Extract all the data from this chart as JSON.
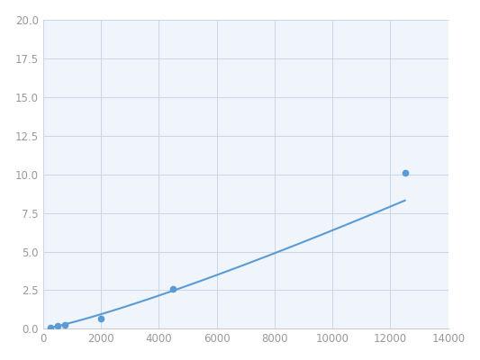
{
  "x": [
    250,
    500,
    750,
    2000,
    4500,
    12500
  ],
  "y": [
    0.1,
    0.2,
    0.25,
    0.65,
    2.6,
    10.1
  ],
  "line_color": "#5b9bd5",
  "marker_color": "#5b9bd5",
  "marker_size": 4.5,
  "line_width": 1.5,
  "xlim": [
    0,
    14000
  ],
  "ylim": [
    0,
    20.0
  ],
  "xticks": [
    0,
    2000,
    4000,
    6000,
    8000,
    10000,
    12000,
    14000
  ],
  "yticks": [
    0.0,
    2.5,
    5.0,
    7.5,
    10.0,
    12.5,
    15.0,
    17.5,
    20.0
  ],
  "grid_color": "#c8d8e8",
  "background_color": "#f0f5fb",
  "figure_bg": "#ffffff"
}
